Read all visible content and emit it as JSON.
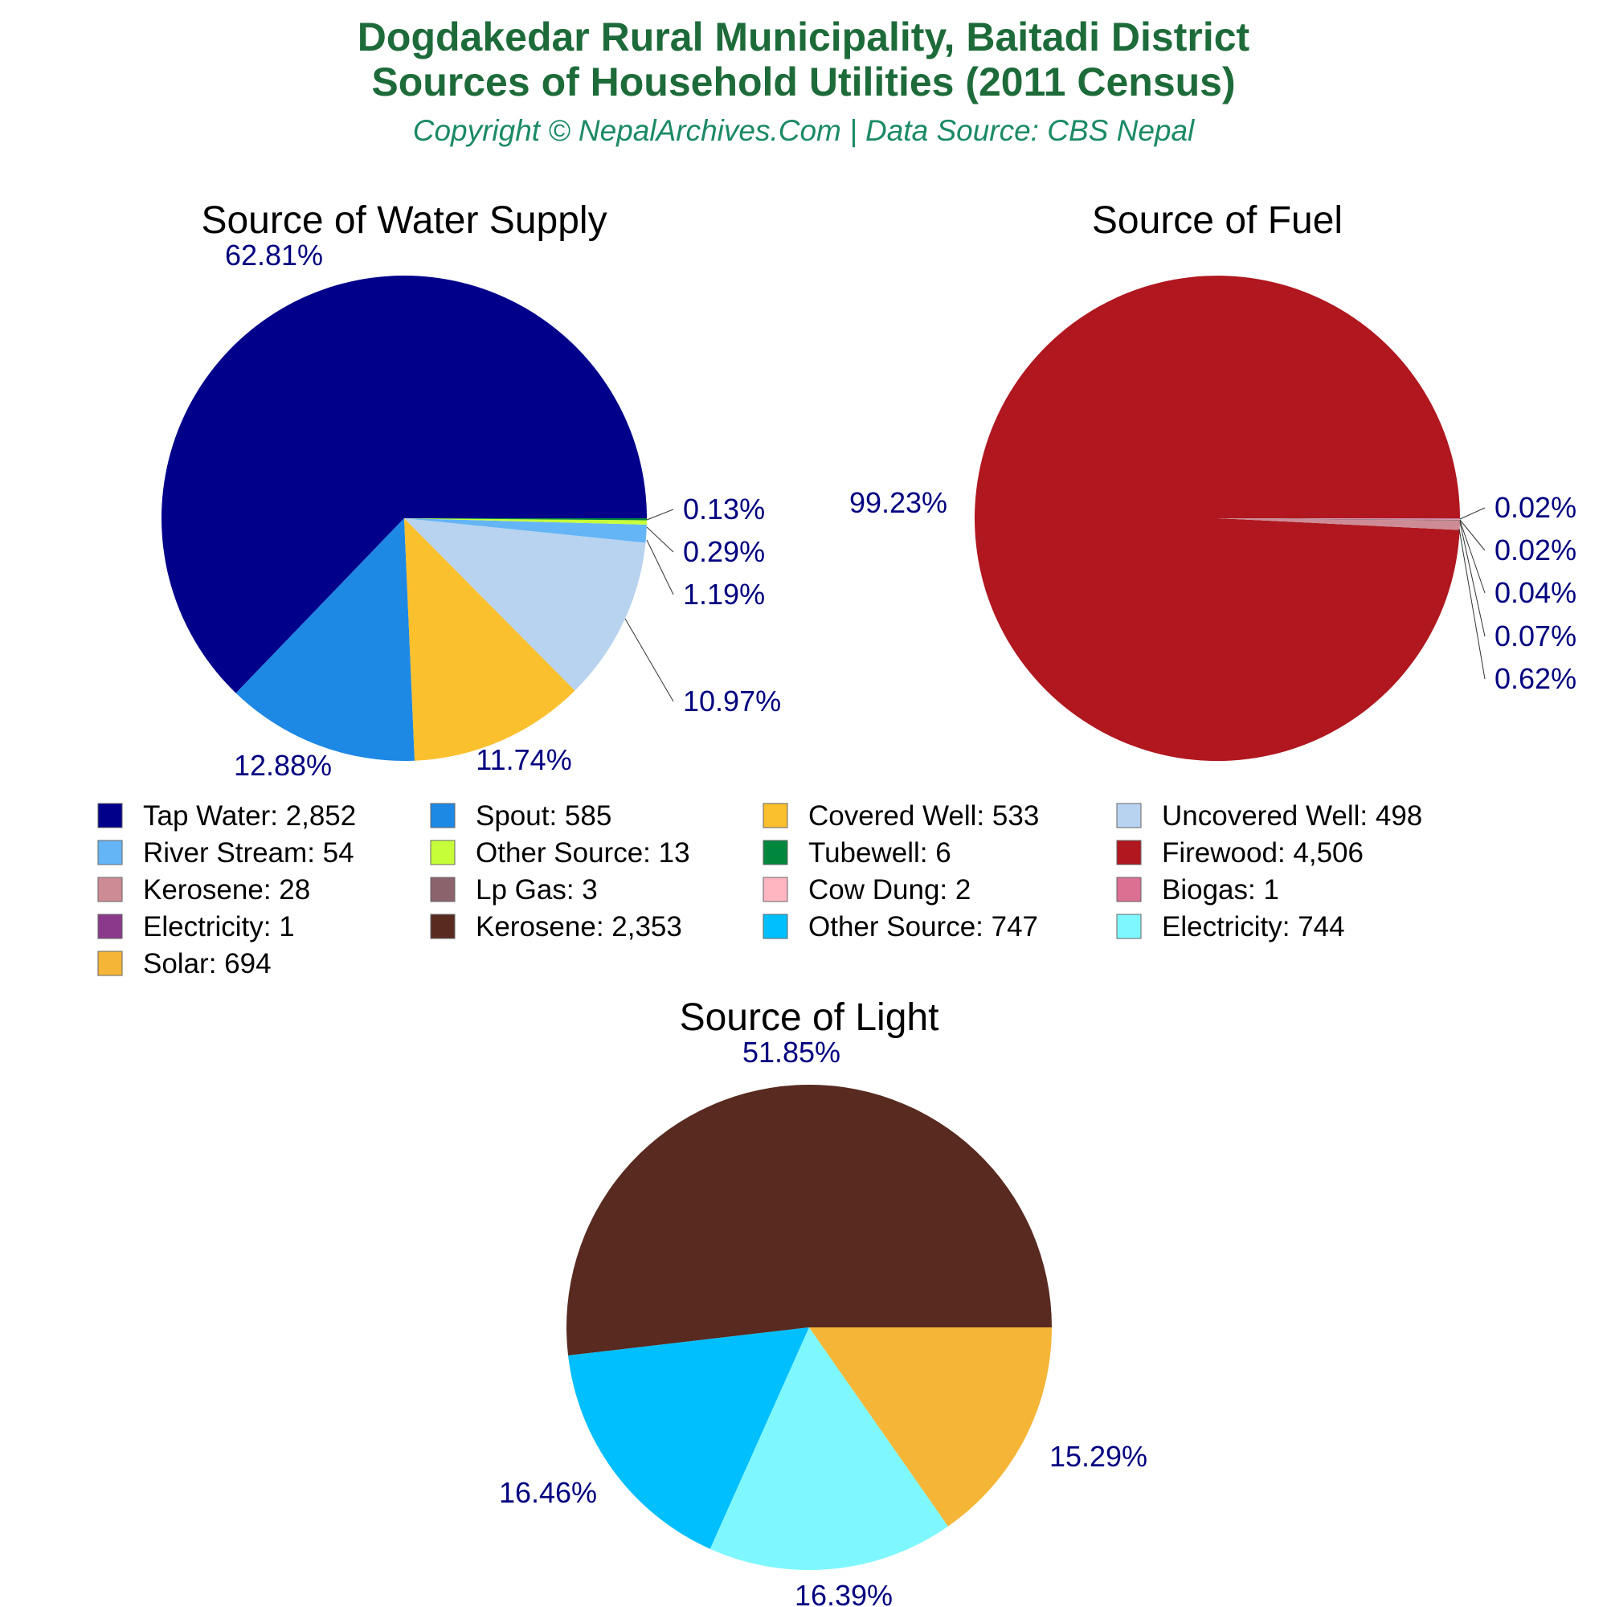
{
  "header": {
    "title_line1": "Dogdakedar Rural Municipality, Baitadi District",
    "title_line2": "Sources of Household Utilities (2011 Census)",
    "subtitle": "Copyright © NepalArchives.Com | Data Source: CBS Nepal"
  },
  "chart_data": [
    {
      "type": "pie",
      "title": "Source of Water Supply",
      "slices": [
        {
          "label": "Tap Water",
          "value": 2852,
          "percent": "62.81%",
          "color": "#00008b"
        },
        {
          "label": "Spout",
          "value": 585,
          "percent": "12.88%",
          "color": "#1e88e5"
        },
        {
          "label": "Covered Well",
          "value": 533,
          "percent": "11.74%",
          "color": "#fbc02d"
        },
        {
          "label": "Uncovered Well",
          "value": 498,
          "percent": "10.97%",
          "color": "#b8d3ef"
        },
        {
          "label": "River Stream",
          "value": 54,
          "percent": "1.19%",
          "color": "#64b5f6"
        },
        {
          "label": "Other Source",
          "value": 13,
          "percent": "0.29%",
          "color": "#c6ff3a"
        },
        {
          "label": "Tubewell",
          "value": 6,
          "percent": "0.13%",
          "color": "#00873e"
        }
      ]
    },
    {
      "type": "pie",
      "title": "Source of Fuel",
      "slices": [
        {
          "label": "Firewood",
          "value": 4506,
          "percent": "99.23%",
          "color": "#b0171f"
        },
        {
          "label": "Kerosene",
          "value": 28,
          "percent": "0.62%",
          "color": "#cd8c95"
        },
        {
          "label": "Lp Gas",
          "value": 3,
          "percent": "0.07%",
          "color": "#8b636c"
        },
        {
          "label": "Cow Dung",
          "value": 2,
          "percent": "0.04%",
          "color": "#ffb6c1"
        },
        {
          "label": "Biogas",
          "value": 1,
          "percent": "0.02%",
          "color": "#db7093"
        },
        {
          "label": "Electricity",
          "value": 1,
          "percent": "0.02%",
          "color": "#8b3a8b"
        }
      ]
    },
    {
      "type": "pie",
      "title": "Source of Light",
      "slices": [
        {
          "label": "Kerosene",
          "value": 2353,
          "percent": "51.85%",
          "color": "#582a20"
        },
        {
          "label": "Other Source",
          "value": 747,
          "percent": "16.46%",
          "color": "#00bfff"
        },
        {
          "label": "Electricity",
          "value": 744,
          "percent": "16.39%",
          "color": "#7ff7ff"
        },
        {
          "label": "Solar",
          "value": 694,
          "percent": "15.29%",
          "color": "#f5b536"
        }
      ]
    }
  ],
  "legend": [
    {
      "text": "Tap Water: 2,852",
      "color": "#00008b"
    },
    {
      "text": "Spout: 585",
      "color": "#1e88e5"
    },
    {
      "text": "Covered Well: 533",
      "color": "#fbc02d"
    },
    {
      "text": "Uncovered Well: 498",
      "color": "#b8d3ef"
    },
    {
      "text": "River Stream: 54",
      "color": "#64b5f6"
    },
    {
      "text": "Other Source: 13",
      "color": "#c6ff3a"
    },
    {
      "text": "Tubewell: 6",
      "color": "#00873e"
    },
    {
      "text": "Firewood: 4,506",
      "color": "#b0171f"
    },
    {
      "text": "Kerosene: 28",
      "color": "#cd8c95"
    },
    {
      "text": "Lp Gas: 3",
      "color": "#8b636c"
    },
    {
      "text": "Cow Dung: 2",
      "color": "#ffb6c1"
    },
    {
      "text": "Biogas: 1",
      "color": "#db7093"
    },
    {
      "text": "Electricity: 1",
      "color": "#8b3a8b"
    },
    {
      "text": "Kerosene: 2,353",
      "color": "#582a20"
    },
    {
      "text": "Other Source: 747",
      "color": "#00bfff"
    },
    {
      "text": "Electricity: 744",
      "color": "#7ff7ff"
    },
    {
      "text": "Solar: 694",
      "color": "#f5b536"
    }
  ]
}
